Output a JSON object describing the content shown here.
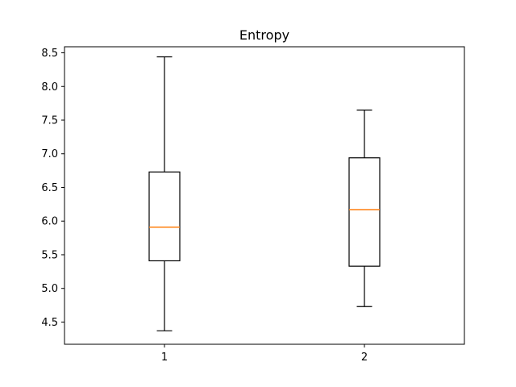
{
  "chart_data": {
    "type": "box",
    "title": "Entropy",
    "xlabel": "",
    "ylabel": "",
    "categories": [
      "1",
      "2"
    ],
    "ylim": [
      4.17,
      8.59
    ],
    "yticks": [
      4.5,
      5.0,
      5.5,
      6.0,
      6.5,
      7.0,
      7.5,
      8.0,
      8.5
    ],
    "ytick_labels": [
      "4.5",
      "5.0",
      "5.5",
      "6.0",
      "6.5",
      "7.0",
      "7.5",
      "8.0",
      "8.5"
    ],
    "grid": false,
    "series": [
      {
        "whisker_low": 4.37,
        "q1": 5.41,
        "median": 5.91,
        "q3": 6.73,
        "whisker_high": 8.44
      },
      {
        "whisker_low": 4.73,
        "q1": 5.33,
        "median": 6.17,
        "q3": 6.94,
        "whisker_high": 7.65
      }
    ],
    "colors": {
      "box": "#000000",
      "median": "#ff7f0e"
    }
  }
}
